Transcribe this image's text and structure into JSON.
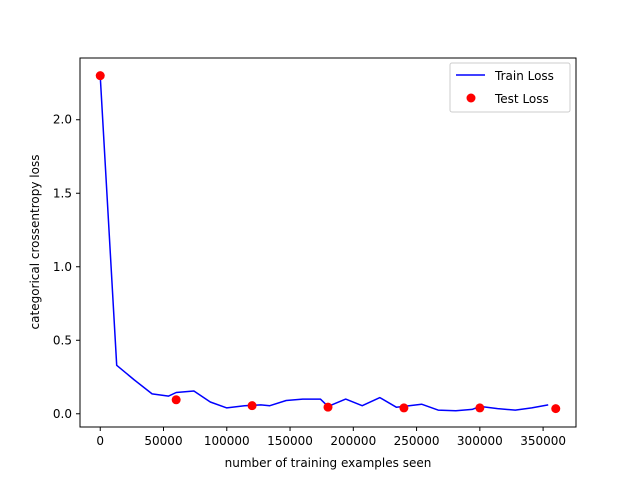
{
  "chart_data": {
    "type": "line",
    "xlabel": "number of training examples seen",
    "ylabel": "categorical crossentropy loss",
    "xlim": [
      -16000,
      376000
    ],
    "ylim": [
      -0.09,
      2.42
    ],
    "x_ticks": [
      0,
      50000,
      100000,
      150000,
      200000,
      250000,
      300000,
      350000
    ],
    "x_tick_labels": [
      "0",
      "50000",
      "100000",
      "150000",
      "200000",
      "250000",
      "300000",
      "350000"
    ],
    "y_ticks": [
      0.0,
      0.5,
      1.0,
      1.5,
      2.0
    ],
    "y_tick_labels": [
      "0.0",
      "0.5",
      "1.0",
      "1.5",
      "2.0"
    ],
    "grid": false,
    "legend_position": "top-right",
    "series": [
      {
        "name": "Train Loss",
        "style": "line",
        "color": "#0000ff",
        "x": [
          0,
          13000,
          27000,
          41000,
          54000,
          60000,
          74000,
          87000,
          100000,
          114000,
          127000,
          134000,
          147000,
          160000,
          174000,
          180000,
          194000,
          207000,
          221000,
          234000,
          240000,
          254000,
          267000,
          281000,
          294000,
          300000,
          314000,
          328000,
          341000,
          354000
        ],
        "y": [
          2.3,
          0.33,
          0.23,
          0.135,
          0.12,
          0.145,
          0.155,
          0.08,
          0.04,
          0.055,
          0.06,
          0.055,
          0.09,
          0.1,
          0.1,
          0.05,
          0.1,
          0.055,
          0.11,
          0.045,
          0.05,
          0.065,
          0.025,
          0.02,
          0.03,
          0.05,
          0.035,
          0.025,
          0.04,
          0.06
        ]
      },
      {
        "name": "Test Loss",
        "style": "scatter",
        "color": "#ff0000",
        "x": [
          0,
          60000,
          120000,
          180000,
          240000,
          300000,
          360000
        ],
        "y": [
          2.3,
          0.095,
          0.055,
          0.045,
          0.04,
          0.04,
          0.035
        ]
      }
    ]
  }
}
